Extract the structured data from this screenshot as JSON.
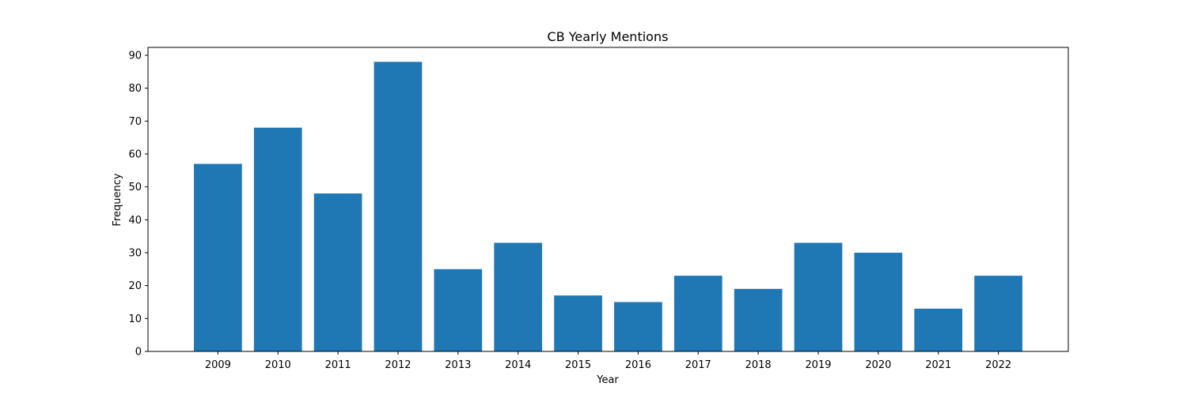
{
  "chart_data": {
    "type": "bar",
    "title": "CB Yearly Mentions",
    "xlabel": "Year",
    "ylabel": "Frequency",
    "categories": [
      "2009",
      "2010",
      "2011",
      "2012",
      "2013",
      "2014",
      "2015",
      "2016",
      "2017",
      "2018",
      "2019",
      "2020",
      "2021",
      "2022"
    ],
    "values": [
      57,
      68,
      48,
      88,
      25,
      33,
      17,
      15,
      23,
      19,
      33,
      30,
      13,
      23
    ],
    "ylim": [
      0,
      92.4
    ],
    "yticks": [
      0,
      10,
      20,
      30,
      40,
      50,
      60,
      70,
      80,
      90
    ],
    "grid": false,
    "legend": "none",
    "bar_color": "#1f77b4"
  }
}
